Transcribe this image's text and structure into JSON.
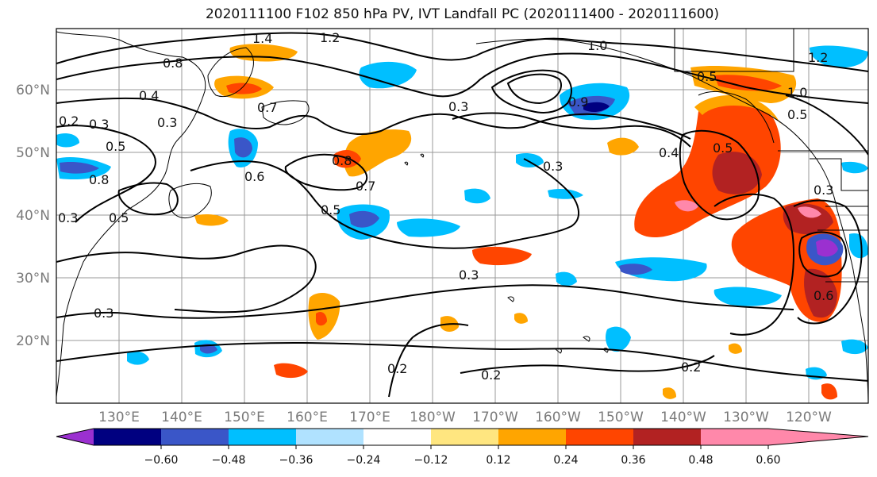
{
  "title": "2020111100 F102 850 hPa PV, IVT Landfall PC (2020111400 - 2020111600)",
  "map": {
    "lat_labels": [
      "60°N",
      "50°N",
      "40°N",
      "30°N",
      "20°N"
    ],
    "lon_labels": [
      "130°E",
      "140°E",
      "150°E",
      "160°E",
      "170°E",
      "180°W",
      "170°W",
      "160°W",
      "150°W",
      "140°W",
      "130°W",
      "120°W"
    ],
    "contour_labels": [
      "1.4",
      "1.2",
      "0.8",
      "1.0",
      "0.7",
      "0.3",
      "0.2",
      "0.3",
      "0.5",
      "0.3",
      "0.8",
      "0.4",
      "0.3",
      "0.6",
      "0.8",
      "0.7",
      "0.3",
      "0.5",
      "0.5",
      "0.3",
      "0.3",
      "0.2",
      "0.2",
      "0.2",
      "1.0",
      "0.9",
      "0.4",
      "0.5",
      "0.5",
      "0.3",
      "0.6",
      "1.2",
      "0.5"
    ]
  },
  "colorbar": {
    "colors": [
      "#9b30d0",
      "#000080",
      "#3a56c8",
      "#00bfff",
      "#b0e2ff",
      "#ffffff",
      "#ffe680",
      "#ffa500",
      "#ff4500",
      "#b22222",
      "#ff88aa"
    ],
    "tick_labels": [
      "−0.60",
      "−0.48",
      "−0.36",
      "−0.24",
      "−0.12",
      "0.12",
      "0.24",
      "0.36",
      "0.48",
      "0.60"
    ]
  }
}
